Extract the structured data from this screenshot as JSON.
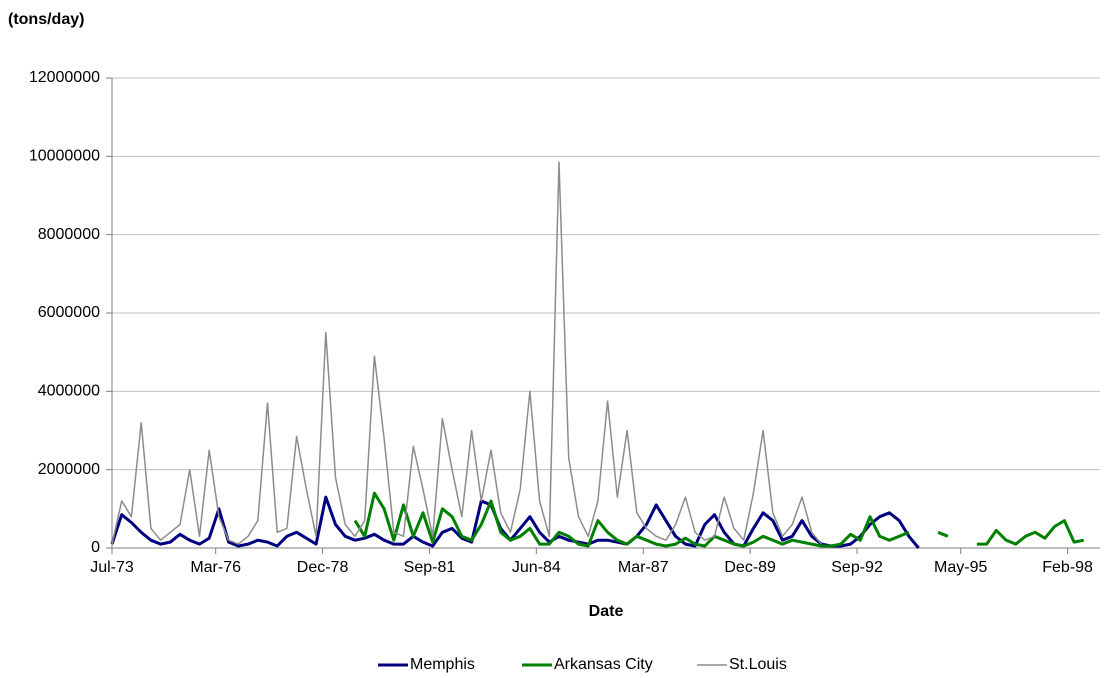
{
  "chart_data": {
    "type": "line",
    "y_label": "(tons/day)",
    "x_label": "Date",
    "x": [
      "1973-07",
      "1973-10",
      "1974-01",
      "1974-04",
      "1974-07",
      "1974-10",
      "1975-01",
      "1975-04",
      "1975-07",
      "1975-10",
      "1976-01",
      "1976-04",
      "1976-07",
      "1976-10",
      "1977-01",
      "1977-04",
      "1977-07",
      "1977-10",
      "1978-01",
      "1978-04",
      "1978-07",
      "1978-10",
      "1979-01",
      "1979-04",
      "1979-07",
      "1979-10",
      "1980-01",
      "1980-04",
      "1980-07",
      "1980-10",
      "1981-01",
      "1981-04",
      "1981-07",
      "1981-10",
      "1982-01",
      "1982-04",
      "1982-07",
      "1982-10",
      "1983-01",
      "1983-04",
      "1983-07",
      "1983-10",
      "1984-01",
      "1984-04",
      "1984-07",
      "1984-10",
      "1985-01",
      "1985-04",
      "1985-07",
      "1985-10",
      "1986-01",
      "1986-04",
      "1986-07",
      "1986-10",
      "1987-01",
      "1987-04",
      "1987-07",
      "1987-10",
      "1988-01",
      "1988-04",
      "1988-07",
      "1988-10",
      "1989-01",
      "1989-04",
      "1989-07",
      "1989-10",
      "1990-01",
      "1990-04",
      "1990-07",
      "1990-10",
      "1991-01",
      "1991-04",
      "1991-07",
      "1991-10",
      "1992-01",
      "1992-04",
      "1992-07",
      "1992-10",
      "1993-01",
      "1993-04",
      "1993-07",
      "1993-10",
      "1994-01",
      "1994-04",
      "1994-07",
      "1994-10",
      "1995-01",
      "1995-04",
      "1995-07",
      "1995-10",
      "1996-01",
      "1996-04",
      "1996-07",
      "1996-10",
      "1997-01",
      "1997-04",
      "1997-07",
      "1997-10",
      "1998-01",
      "1998-04",
      "1998-07"
    ],
    "series": [
      {
        "name": "Memphis",
        "color": "#000080",
        "width": 3,
        "values": [
          100000,
          850000,
          650000,
          400000,
          200000,
          100000,
          150000,
          350000,
          200000,
          100000,
          250000,
          1000000,
          150000,
          50000,
          100000,
          200000,
          150000,
          50000,
          300000,
          400000,
          250000,
          100000,
          1300000,
          600000,
          300000,
          200000,
          250000,
          350000,
          200000,
          100000,
          100000,
          300000,
          150000,
          50000,
          400000,
          500000,
          250000,
          150000,
          1200000,
          1100000,
          500000,
          200000,
          500000,
          800000,
          400000,
          150000,
          300000,
          200000,
          150000,
          100000,
          200000,
          200000,
          150000,
          100000,
          300000,
          600000,
          1100000,
          700000,
          300000,
          100000,
          50000,
          600000,
          850000,
          400000,
          100000,
          50000,
          500000,
          900000,
          700000,
          200000,
          300000,
          700000,
          300000,
          100000,
          50000,
          50000,
          100000,
          300000,
          600000,
          800000,
          900000,
          700000,
          300000,
          0,
          null,
          null,
          null,
          null,
          null,
          null,
          null,
          null,
          null,
          null,
          null,
          null,
          null,
          null,
          null,
          null,
          null
        ]
      },
      {
        "name": "Arkansas City",
        "color": "#008000",
        "width": 3,
        "values": [
          null,
          null,
          null,
          null,
          null,
          null,
          null,
          null,
          null,
          null,
          null,
          null,
          null,
          null,
          null,
          null,
          null,
          null,
          null,
          null,
          null,
          null,
          null,
          null,
          null,
          700000,
          300000,
          1400000,
          1000000,
          200000,
          1100000,
          300000,
          900000,
          150000,
          1000000,
          800000,
          300000,
          200000,
          600000,
          1200000,
          400000,
          200000,
          300000,
          500000,
          100000,
          100000,
          400000,
          300000,
          100000,
          50000,
          700000,
          400000,
          200000,
          100000,
          300000,
          200000,
          100000,
          50000,
          100000,
          250000,
          100000,
          50000,
          300000,
          200000,
          100000,
          50000,
          150000,
          300000,
          200000,
          100000,
          200000,
          150000,
          100000,
          50000,
          50000,
          100000,
          350000,
          200000,
          800000,
          300000,
          200000,
          300000,
          400000,
          null,
          null,
          400000,
          300000,
          null,
          null,
          100000,
          100000,
          450000,
          200000,
          100000,
          300000,
          400000,
          250000,
          550000,
          700000,
          150000,
          200000
        ]
      },
      {
        "name": "St.Louis",
        "color": "#8c8c8c",
        "width": 1.5,
        "values": [
          100000,
          1200000,
          800000,
          3200000,
          500000,
          200000,
          400000,
          600000,
          2000000,
          300000,
          2500000,
          800000,
          200000,
          100000,
          300000,
          700000,
          3700000,
          400000,
          500000,
          2850000,
          1500000,
          300000,
          5500000,
          1800000,
          600000,
          300000,
          700000,
          4900000,
          2800000,
          400000,
          300000,
          2600000,
          1500000,
          300000,
          3300000,
          2000000,
          800000,
          3000000,
          1200000,
          2500000,
          900000,
          400000,
          1500000,
          4000000,
          1200000,
          300000,
          9850000,
          2300000,
          800000,
          300000,
          1200000,
          3750000,
          1300000,
          3000000,
          900000,
          500000,
          300000,
          200000,
          600000,
          1300000,
          400000,
          200000,
          300000,
          1300000,
          500000,
          200000,
          1400000,
          3000000,
          900000,
          300000,
          600000,
          1300000,
          400000,
          100000,
          null,
          null,
          null,
          null,
          null,
          null,
          null,
          null,
          null,
          null,
          null,
          null,
          null,
          null,
          null,
          null,
          null,
          null,
          null,
          null,
          null,
          null,
          null,
          null,
          null,
          null,
          null
        ]
      }
    ],
    "xlim": [
      "1973-07",
      "1998-12"
    ],
    "xticks": [
      {
        "value": "1973-07",
        "label": "Jul-73"
      },
      {
        "value": "1976-03",
        "label": "Mar-76"
      },
      {
        "value": "1978-12",
        "label": "Dec-78"
      },
      {
        "value": "1981-09",
        "label": "Sep-81"
      },
      {
        "value": "1984-06",
        "label": "Jun-84"
      },
      {
        "value": "1987-03",
        "label": "Mar-87"
      },
      {
        "value": "1989-12",
        "label": "Dec-89"
      },
      {
        "value": "1992-09",
        "label": "Sep-92"
      },
      {
        "value": "1995-05",
        "label": "May-95"
      },
      {
        "value": "1998-02",
        "label": "Feb-98"
      }
    ],
    "ylim": [
      0,
      12000000
    ],
    "yticks": [
      0,
      2000000,
      4000000,
      6000000,
      8000000,
      10000000,
      12000000
    ],
    "grid": true,
    "legend": "bottom"
  }
}
